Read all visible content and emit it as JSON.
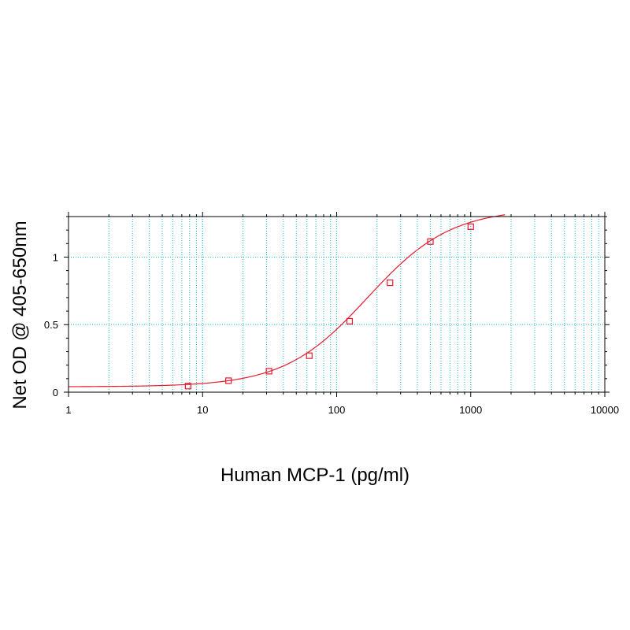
{
  "chart_data": {
    "type": "scatter",
    "title": "",
    "xlabel": "Human MCP-1 (pg/ml)",
    "ylabel": "Net OD @ 405-650nm",
    "xscale": "log",
    "xlim": [
      1,
      10000
    ],
    "ylim": [
      0,
      1.3
    ],
    "x_ticks": [
      1,
      10,
      100,
      1000,
      10000
    ],
    "x_tick_labels": [
      "1",
      "10",
      "100",
      "1000",
      "10000"
    ],
    "y_ticks": [
      0,
      0.5,
      1
    ],
    "y_tick_labels": [
      "0",
      "0.5",
      "1"
    ],
    "grid": true,
    "legend": "none",
    "series": [
      {
        "points": [
          {
            "x": 7.8,
            "y": 0.045
          },
          {
            "x": 15.6,
            "y": 0.085
          },
          {
            "x": 31.3,
            "y": 0.155
          },
          {
            "x": 62.5,
            "y": 0.27
          },
          {
            "x": 125,
            "y": 0.525
          },
          {
            "x": 250,
            "y": 0.81
          },
          {
            "x": 500,
            "y": 1.115
          },
          {
            "x": 1000,
            "y": 1.225
          }
        ],
        "fit": {
          "model": "4PL",
          "bottom": 0.04,
          "top": 1.36,
          "ec50": 170,
          "hill": 1.4,
          "x_range": [
            1,
            1800
          ]
        }
      }
    ],
    "colors": {
      "series": "#e8192c",
      "grid": "#19b6d2",
      "axis": "#000000"
    }
  }
}
